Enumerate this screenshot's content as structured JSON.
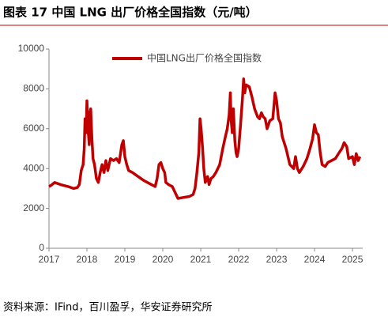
{
  "chart_data": {
    "type": "line",
    "title": "图表 17 中国 LNG 出厂价格全国指数（元/吨）",
    "source": "资料来源：IFind，百川盈孚，华安证券研究所",
    "x": [
      2017.0,
      2017.05,
      2017.15,
      2017.3,
      2017.5,
      2017.65,
      2017.75,
      2017.8,
      2017.85,
      2017.9,
      2017.93,
      2017.95,
      2017.98,
      2018.0,
      2018.03,
      2018.06,
      2018.08,
      2018.1,
      2018.13,
      2018.16,
      2018.2,
      2018.25,
      2018.3,
      2018.35,
      2018.4,
      2018.45,
      2018.5,
      2018.55,
      2018.62,
      2018.7,
      2018.78,
      2018.85,
      2018.92,
      2018.96,
      2019.0,
      2019.05,
      2019.1,
      2019.2,
      2019.35,
      2019.5,
      2019.7,
      2019.8,
      2019.85,
      2019.9,
      2019.95,
      2020.0,
      2020.05,
      2020.08,
      2020.15,
      2020.25,
      2020.35,
      2020.4,
      2020.55,
      2020.7,
      2020.8,
      2020.85,
      2020.9,
      2020.95,
      2020.98,
      2021.01,
      2021.05,
      2021.08,
      2021.12,
      2021.18,
      2021.22,
      2021.27,
      2021.33,
      2021.4,
      2021.5,
      2021.58,
      2021.65,
      2021.7,
      2021.75,
      2021.78,
      2021.8,
      2021.83,
      2021.86,
      2021.9,
      2021.93,
      2021.96,
      2022.0,
      2022.05,
      2022.1,
      2022.13,
      2022.16,
      2022.2,
      2022.28,
      2022.35,
      2022.42,
      2022.5,
      2022.55,
      2022.6,
      2022.65,
      2022.7,
      2022.75,
      2022.82,
      2022.9,
      2022.96,
      2023.0,
      2023.05,
      2023.1,
      2023.15,
      2023.25,
      2023.35,
      2023.45,
      2023.5,
      2023.55,
      2023.6,
      2023.7,
      2023.8,
      2023.88,
      2023.95,
      2024.0,
      2024.05,
      2024.1,
      2024.15,
      2024.2,
      2024.28,
      2024.35,
      2024.45,
      2024.55,
      2024.65,
      2024.72,
      2024.78,
      2024.85,
      2024.9,
      2025.0,
      2025.05,
      2025.1,
      2025.15,
      2025.2
    ],
    "series": [
      {
        "name": "中国LNG出厂价格全国指数",
        "color": "#c00000",
        "values": [
          3100,
          3150,
          3300,
          3200,
          3100,
          3000,
          3050,
          3200,
          3900,
          4200,
          5000,
          6500,
          5800,
          7400,
          6000,
          5200,
          6800,
          7000,
          5600,
          4500,
          4200,
          3500,
          3300,
          3800,
          4200,
          3800,
          4400,
          3900,
          4500,
          4400,
          4500,
          4300,
          5200,
          5400,
          4600,
          4200,
          3900,
          3800,
          3600,
          3400,
          3200,
          3100,
          3500,
          4200,
          4300,
          4000,
          3800,
          3300,
          3200,
          3100,
          2700,
          2500,
          2550,
          2600,
          2700,
          3000,
          3800,
          4800,
          6500,
          6000,
          5000,
          4000,
          3300,
          3600,
          3200,
          3500,
          3600,
          3800,
          4200,
          5000,
          5600,
          6000,
          6700,
          7800,
          6500,
          5800,
          7000,
          5400,
          4800,
          4600,
          5000,
          6200,
          7500,
          8500,
          7800,
          8200,
          8100,
          7600,
          7000,
          6600,
          6500,
          6800,
          6600,
          6500,
          6000,
          6400,
          6500,
          7800,
          7400,
          6500,
          6300,
          5600,
          5000,
          4200,
          4000,
          4600,
          4000,
          3800,
          4100,
          4500,
          5000,
          5500,
          6200,
          5800,
          5700,
          4800,
          4200,
          4100,
          4300,
          4400,
          4500,
          4800,
          5000,
          5300,
          5100,
          4500,
          4600,
          4200,
          4750,
          4400,
          4600
        ]
      }
    ],
    "xlim": [
      2017,
      2025.27
    ],
    "xticks": [
      2017,
      2018,
      2019,
      2020,
      2021,
      2022,
      2023,
      2024,
      2025
    ],
    "ylim": [
      0,
      10000
    ],
    "yticks": [
      0,
      2000,
      4000,
      6000,
      8000,
      10000
    ],
    "grid": false
  }
}
